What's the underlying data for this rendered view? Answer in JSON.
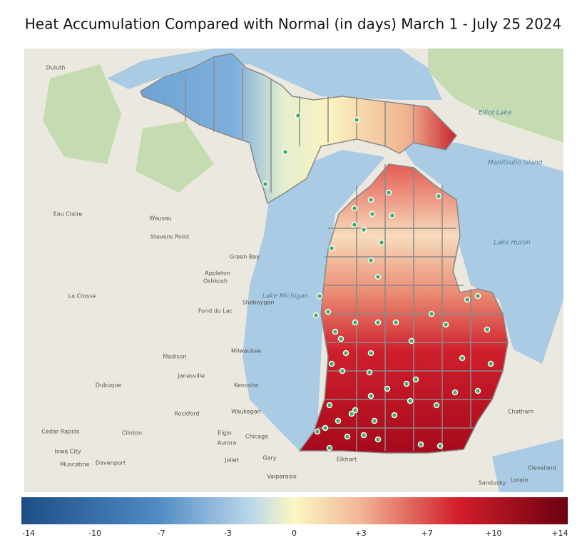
{
  "title": "Heat Accumulation Compared with Normal (in days) March 1 - July 25 2024",
  "colorbar": {
    "ticks": [
      -14,
      -10,
      -7,
      -3,
      0,
      {
        "value": 3,
        "label": "+3"
      },
      {
        "value": 7,
        "label": "+7"
      },
      {
        "value": 10,
        "label": "+10"
      },
      {
        "value": 14,
        "label": "+14"
      }
    ]
  },
  "map_labels": [
    "Duluth",
    "Eau Claire",
    "Wausau",
    "Stevens Point",
    "Appleton",
    "Oshkosh",
    "Green Bay",
    "La Crosse",
    "Fond du Lac",
    "Sheboygan",
    "Lake Michigan",
    "Madison",
    "Milwaukee",
    "Janesville",
    "Dubuque",
    "Kenosha",
    "Waukegan",
    "Rockford",
    "Cedar Rapids",
    "Clinton",
    "Elgin",
    "Aurora",
    "Chicago",
    "Iowa City",
    "Muscatine",
    "Davenport",
    "Joliet",
    "Gary",
    "Elkhart",
    "Valparaiso",
    "Lake Huron",
    "Elliot Lake",
    "Manitoulin Island",
    "Chatham",
    "Cleveland",
    "Sandusky",
    "Lorain"
  ]
}
